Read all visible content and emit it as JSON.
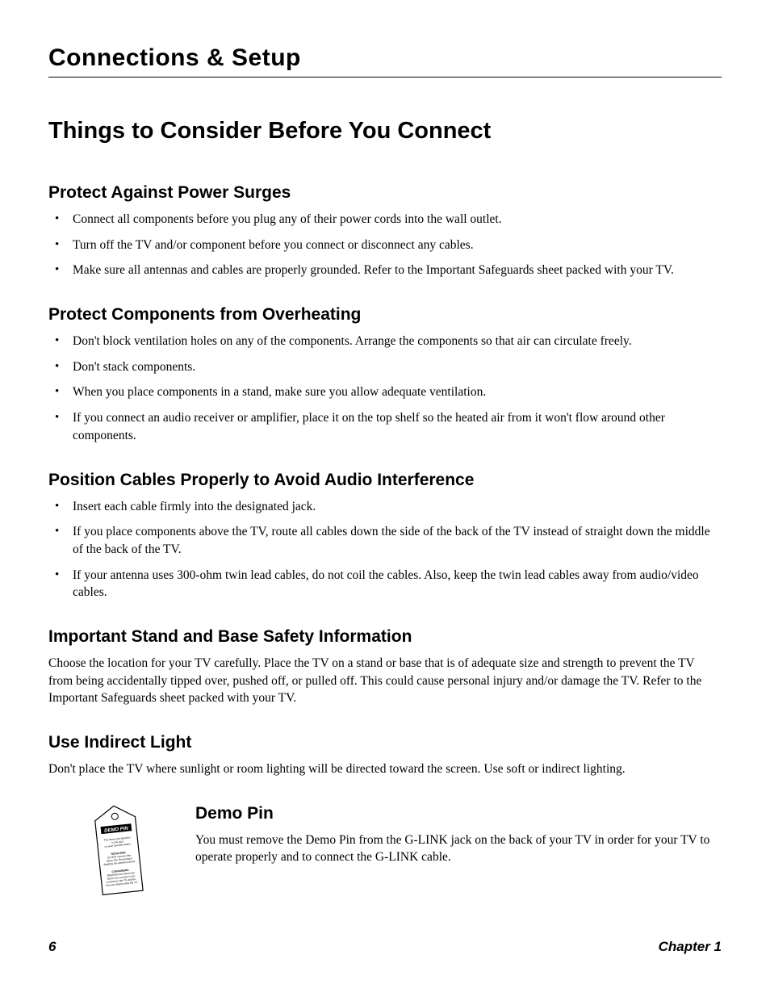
{
  "header": "Connections & Setup",
  "title": "Things to Consider Before You Connect",
  "sections": [
    {
      "heading": "Protect Against Power Surges",
      "bullets": [
        "Connect all components before you plug any of their power cords into the wall outlet.",
        "Turn off the TV and/or component before you connect or disconnect any cables.",
        "Make sure all antennas and cables are properly grounded. Refer to the Important Safeguards sheet packed with your TV."
      ]
    },
    {
      "heading": "Protect Components from Overheating",
      "bullets": [
        "Don't block ventilation holes on any of the components. Arrange the components so that air can circulate freely.",
        "Don't stack components.",
        "When you place components in a stand, make sure you allow adequate ventilation.",
        "If you connect an audio receiver or amplifier, place it on the top shelf so the heated air from it won't flow around other components."
      ]
    },
    {
      "heading": "Position Cables Properly to Avoid Audio Interference",
      "bullets": [
        "Insert each cable firmly into the designated jack.",
        "If you place components above the TV, route all cables down the side of the back of the TV instead of straight down the middle of the back of the TV.",
        "If your antenna uses 300-ohm twin lead cables, do not coil the cables. Also, keep the twin lead cables away from audio/video cables."
      ]
    },
    {
      "heading": "Important Stand and Base Safety Information",
      "body": "Choose the location for your TV carefully. Place the TV on a stand or base that is of adequate size and strength to prevent the TV from being accidentally tipped over, pushed off, or pulled off. This could cause personal injury and/or damage the TV. Refer to the Important Safeguards sheet packed with your TV."
    },
    {
      "heading": "Use Indirect Light",
      "body": "Don't place the TV where sunlight or room lighting will be directed toward the screen. Use soft or indirect lighting."
    }
  ],
  "demo": {
    "heading": "Demo Pin",
    "body": "You must remove the Demo Pin from the G-LINK jack on the back of your TV in order for your TV to operate properly and to connect the G-LINK cable.",
    "tag_label": "DEMO PIN"
  },
  "footer": {
    "page": "6",
    "chapter": "Chapter 1"
  },
  "styling": {
    "page_bg": "#ffffff",
    "text_color": "#000000",
    "rule_color": "#000000",
    "header_font": "Arial Black / sans-serif heavy",
    "heading_font": "sans-serif bold",
    "body_font": "serif",
    "header_size_pt": 24,
    "h1_size_pt": 22,
    "h2_size_pt": 16,
    "body_size_pt": 12
  }
}
